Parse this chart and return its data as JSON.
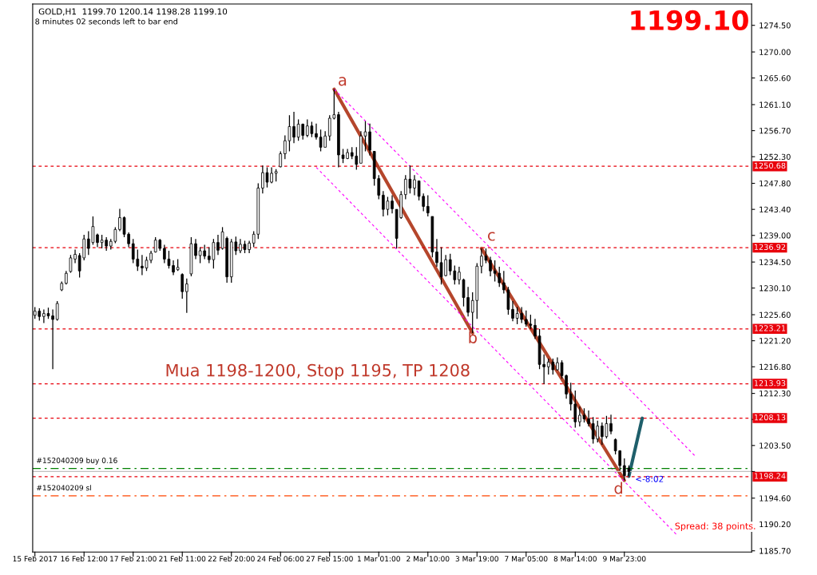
{
  "chart_data": {
    "type": "candlestick",
    "title": "GOLD,H1  1199.70 1200.14 1198.28 1199.10",
    "color": "#000000",
    "categories": [
      "15 Feb 2017",
      null,
      null,
      null,
      null,
      null,
      null,
      null,
      null,
      null,
      null,
      "16 Feb 12:00",
      null,
      null,
      null,
      null,
      null,
      null,
      null,
      null,
      null,
      null,
      "17 Feb 21:00",
      null,
      null,
      null,
      null,
      null,
      null,
      null,
      null,
      null,
      null,
      "21 Feb 11:00",
      null,
      null,
      null,
      null,
      null,
      null,
      null,
      null,
      null,
      null,
      "22 Feb 20:00",
      null,
      null,
      null,
      null,
      null,
      null,
      null,
      null,
      null,
      null,
      "24 Feb 06:00",
      null,
      null,
      null,
      null,
      null,
      null,
      null,
      null,
      null,
      null,
      "27 Feb 15:00",
      null,
      null,
      null,
      null,
      null,
      null,
      null,
      null,
      null,
      null,
      "1 Mar 01:00",
      null,
      null,
      null,
      null,
      null,
      null,
      null,
      null,
      null,
      null,
      "2 Mar 10:00",
      null,
      null,
      null,
      null,
      null,
      null,
      null,
      null,
      null,
      null,
      "3 Mar 19:00",
      null,
      null,
      null,
      null,
      null,
      null,
      null,
      null,
      null,
      null,
      "7 Mar 05:00",
      null,
      null,
      null,
      null,
      null,
      null,
      null,
      null,
      null,
      null,
      "8 Mar 14:00",
      null,
      null,
      null,
      null,
      null,
      null,
      null,
      null,
      null,
      null,
      "9 Mar 23:00",
      null,
      null,
      null,
      null,
      null,
      null,
      null,
      null,
      null,
      null,
      null,
      null,
      null,
      null,
      null,
      null,
      null,
      null,
      null,
      null,
      null,
      null,
      null,
      null,
      null,
      null,
      null,
      null
    ],
    "ohlc": [
      [
        1225.5,
        1226.9,
        1224.9,
        1226.2
      ],
      [
        1226.2,
        1226.7,
        1224.6,
        1225.3
      ],
      [
        1225.3,
        1226.5,
        1224.2,
        1225.8
      ],
      [
        1225.8,
        1226.8,
        1224.9,
        1225.4
      ],
      [
        1225.4,
        1226.5,
        1216.4,
        1224.8
      ],
      [
        1224.8,
        1227.9,
        1224.6,
        1227.5
      ],
      [
        1229.8,
        1231.2,
        1229.6,
        1230.9
      ],
      [
        1230.9,
        1233.0,
        1230.7,
        1232.6
      ],
      [
        1232.9,
        1235.7,
        1232.7,
        1235.2
      ],
      [
        1235.0,
        1236.6,
        1234.3,
        1235.8
      ],
      [
        1235.6,
        1236.0,
        1231.9,
        1233.0
      ],
      [
        1235.2,
        1239.1,
        1234.8,
        1238.4
      ],
      [
        1238.4,
        1239.7,
        1235.7,
        1236.8
      ],
      [
        1237.8,
        1242.2,
        1237.4,
        1240.5
      ],
      [
        1239.1,
        1239.3,
        1237.0,
        1237.8
      ],
      [
        1237.8,
        1239.1,
        1236.8,
        1238.2
      ],
      [
        1238.2,
        1238.7,
        1236.4,
        1237.2
      ],
      [
        1237.2,
        1238.4,
        1236.6,
        1238.0
      ],
      [
        1238.0,
        1240.4,
        1237.7,
        1240.0
      ],
      [
        1240.0,
        1243.5,
        1239.7,
        1242.0
      ],
      [
        1242.0,
        1242.2,
        1238.7,
        1239.2
      ],
      [
        1239.2,
        1239.5,
        1237.0,
        1237.6
      ],
      [
        1237.6,
        1238.4,
        1234.3,
        1235.0
      ],
      [
        1235.0,
        1236.6,
        1233.0,
        1233.8
      ],
      [
        1233.8,
        1235.7,
        1232.3,
        1233.5
      ],
      [
        1233.5,
        1235.4,
        1233.0,
        1234.8
      ],
      [
        1234.8,
        1236.4,
        1234.3,
        1236.0
      ],
      [
        1236.2,
        1238.7,
        1236.1,
        1238.2
      ],
      [
        1238.2,
        1238.4,
        1236.4,
        1236.8
      ],
      [
        1236.8,
        1237.4,
        1234.3,
        1235.0
      ],
      [
        1235.0,
        1236.4,
        1233.4,
        1233.9
      ],
      [
        1233.9,
        1234.8,
        1232.3,
        1232.8
      ],
      [
        1233.2,
        1235.0,
        1233.0,
        1233.6
      ],
      [
        1232.4,
        1232.6,
        1228.3,
        1229.5
      ],
      [
        1229.5,
        1231.7,
        1225.9,
        1230.8
      ],
      [
        1232.5,
        1238.7,
        1232.1,
        1237.6
      ],
      [
        1237.6,
        1238.4,
        1235.0,
        1235.6
      ],
      [
        1235.6,
        1237.0,
        1234.3,
        1236.4
      ],
      [
        1236.4,
        1237.4,
        1235.0,
        1235.5
      ],
      [
        1235.5,
        1237.0,
        1234.3,
        1234.9
      ],
      [
        1234.9,
        1238.4,
        1233.4,
        1237.8
      ],
      [
        1237.8,
        1239.1,
        1235.7,
        1236.5
      ],
      [
        1236.8,
        1240.4,
        1236.6,
        1239.6
      ],
      [
        1238.5,
        1238.8,
        1231.0,
        1232.0
      ],
      [
        1232.0,
        1238.4,
        1231.0,
        1237.9
      ],
      [
        1237.9,
        1238.8,
        1235.7,
        1236.4
      ],
      [
        1236.4,
        1238.4,
        1236.0,
        1237.5
      ],
      [
        1237.5,
        1238.1,
        1236.0,
        1236.6
      ],
      [
        1236.6,
        1238.1,
        1236.0,
        1237.7
      ],
      [
        1237.7,
        1239.7,
        1237.0,
        1239.2
      ],
      [
        1239.2,
        1247.8,
        1238.4,
        1247.0
      ],
      [
        1247.0,
        1250.8,
        1246.1,
        1249.6
      ],
      [
        1249.6,
        1250.5,
        1247.1,
        1248.0
      ],
      [
        1248.0,
        1250.5,
        1247.8,
        1249.5
      ],
      [
        1249.5,
        1250.2,
        1248.1,
        1249.8
      ],
      [
        1250.6,
        1253.2,
        1250.5,
        1252.8
      ],
      [
        1252.8,
        1255.9,
        1251.9,
        1255.0
      ],
      [
        1255.0,
        1259.3,
        1253.2,
        1257.4
      ],
      [
        1257.4,
        1259.9,
        1254.6,
        1255.6
      ],
      [
        1255.6,
        1258.6,
        1255.0,
        1257.8
      ],
      [
        1257.8,
        1257.9,
        1255.2,
        1255.9
      ],
      [
        1255.9,
        1258.6,
        1255.6,
        1257.5
      ],
      [
        1257.5,
        1258.2,
        1255.6,
        1256.2
      ],
      [
        1256.2,
        1257.9,
        1255.2,
        1255.6
      ],
      [
        1255.6,
        1256.9,
        1253.2,
        1253.9
      ],
      [
        1253.9,
        1256.6,
        1253.9,
        1255.8
      ],
      [
        1255.8,
        1259.3,
        1255.0,
        1258.8
      ],
      [
        1258.8,
        1263.7,
        1258.6,
        1259.4
      ],
      [
        1259.4,
        1259.9,
        1250.5,
        1252.6
      ],
      [
        1252.6,
        1253.6,
        1251.2,
        1252.0
      ],
      [
        1252.0,
        1253.6,
        1251.9,
        1253.0
      ],
      [
        1253.0,
        1253.9,
        1251.9,
        1252.4
      ],
      [
        1252.4,
        1253.9,
        1250.1,
        1251.0
      ],
      [
        1251.2,
        1256.6,
        1251.2,
        1255.8
      ],
      [
        1255.8,
        1258.3,
        1253.2,
        1256.5
      ],
      [
        1256.5,
        1257.9,
        1252.5,
        1253.4
      ],
      [
        1253.2,
        1253.2,
        1247.4,
        1248.6
      ],
      [
        1248.6,
        1249.2,
        1245.1,
        1245.8
      ],
      [
        1245.8,
        1246.5,
        1242.2,
        1243.4
      ],
      [
        1243.4,
        1245.5,
        1242.4,
        1244.8
      ],
      [
        1244.8,
        1245.8,
        1242.7,
        1243.5
      ],
      [
        1243.4,
        1243.4,
        1236.8,
        1238.5
      ],
      [
        1242.0,
        1246.5,
        1241.8,
        1245.9
      ],
      [
        1245.9,
        1249.2,
        1245.1,
        1248.5
      ],
      [
        1248.5,
        1250.8,
        1246.1,
        1247.0
      ],
      [
        1247.0,
        1249.2,
        1245.8,
        1248.4
      ],
      [
        1248.2,
        1248.2,
        1244.9,
        1245.6
      ],
      [
        1245.6,
        1246.1,
        1243.1,
        1243.9
      ],
      [
        1243.9,
        1245.8,
        1242.2,
        1242.8
      ],
      [
        1242.2,
        1242.2,
        1235.3,
        1236.2
      ],
      [
        1236.2,
        1238.4,
        1233.7,
        1234.4
      ],
      [
        1234.4,
        1237.0,
        1230.7,
        1232.0
      ],
      [
        1232.2,
        1235.7,
        1232.1,
        1234.9
      ],
      [
        1234.9,
        1235.9,
        1232.3,
        1233.0
      ],
      [
        1233.0,
        1233.9,
        1230.7,
        1231.5
      ],
      [
        1231.5,
        1233.7,
        1230.7,
        1232.8
      ],
      [
        1231.5,
        1231.7,
        1227.0,
        1228.5
      ],
      [
        1228.5,
        1230.3,
        1225.3,
        1226.0
      ],
      [
        1226.0,
        1229.4,
        1222.5,
        1228.0
      ],
      [
        1228.0,
        1234.3,
        1224.9,
        1233.8
      ],
      [
        1233.8,
        1236.8,
        1232.6,
        1235.5
      ],
      [
        1235.5,
        1236.8,
        1234.3,
        1234.8
      ],
      [
        1234.8,
        1235.4,
        1232.1,
        1233.0
      ],
      [
        1233.0,
        1234.8,
        1231.2,
        1232.6
      ],
      [
        1232.6,
        1233.7,
        1230.3,
        1231.0
      ],
      [
        1231.0,
        1233.0,
        1229.2,
        1229.8
      ],
      [
        1229.8,
        1230.3,
        1225.6,
        1226.5
      ],
      [
        1226.5,
        1227.9,
        1224.5,
        1225.0
      ],
      [
        1225.0,
        1226.9,
        1224.0,
        1225.8
      ],
      [
        1225.8,
        1226.9,
        1224.2,
        1224.8
      ],
      [
        1224.8,
        1226.3,
        1223.6,
        1224.0
      ],
      [
        1224.0,
        1225.6,
        1223.2,
        1223.8
      ],
      [
        1223.8,
        1224.9,
        1221.5,
        1222.0
      ],
      [
        1222.0,
        1223.2,
        1216.4,
        1217.2
      ],
      [
        1217.2,
        1218.9,
        1213.9,
        1216.8
      ],
      [
        1216.8,
        1218.2,
        1215.5,
        1217.6
      ],
      [
        1217.6,
        1218.2,
        1215.5,
        1216.3
      ],
      [
        1216.3,
        1218.4,
        1216.2,
        1217.5
      ],
      [
        1217.5,
        1217.9,
        1214.8,
        1215.3
      ],
      [
        1215.3,
        1215.5,
        1211.4,
        1212.2
      ],
      [
        1212.2,
        1214.1,
        1209.4,
        1210.5
      ],
      [
        1210.5,
        1212.8,
        1206.5,
        1207.5
      ],
      [
        1207.5,
        1210.1,
        1206.7,
        1208.6
      ],
      [
        1208.6,
        1209.8,
        1207.4,
        1208.0
      ],
      [
        1208.0,
        1209.4,
        1206.7,
        1207.2
      ],
      [
        1207.2,
        1208.3,
        1203.8,
        1204.6
      ],
      [
        1204.6,
        1207.7,
        1204.0,
        1206.8
      ],
      [
        1206.8,
        1207.4,
        1203.6,
        1205.0
      ],
      [
        1205.0,
        1208.5,
        1204.7,
        1207.2
      ],
      [
        1207.2,
        1208.7,
        1205.4,
        1205.9
      ],
      [
        1204.5,
        1204.7,
        1202.0,
        1202.6
      ],
      [
        1202.6,
        1202.7,
        1199.3,
        1200.1
      ],
      [
        1200.1,
        1201.3,
        1197.6,
        1198.4
      ],
      [
        1199.7,
        1200.14,
        1198.28,
        1199.1
      ],
      null,
      null,
      null,
      null,
      null,
      null,
      null,
      null,
      null,
      null,
      null,
      null,
      null,
      null,
      null,
      null,
      null,
      null,
      null,
      null,
      null,
      null,
      null,
      null,
      null,
      null,
      null
    ],
    "series": [
      {
        "type": "line",
        "color": "#b5462c",
        "line_style": "solid",
        "values": [
          null,
          null,
          null,
          null,
          null,
          null,
          null,
          null,
          null,
          null,
          null,
          null,
          null,
          null,
          null,
          null,
          null,
          null,
          null,
          null,
          null,
          null,
          null,
          null,
          null,
          null,
          null,
          null,
          null,
          null,
          null,
          null,
          null,
          null,
          null,
          null,
          null,
          null,
          null,
          null,
          null,
          null,
          null,
          null,
          null,
          null,
          null,
          null,
          null,
          null,
          null,
          null,
          null,
          null,
          null,
          null,
          null,
          null,
          null,
          null,
          null,
          null,
          null,
          null,
          null,
          null,
          null,
          1263.7,
          null,
          null,
          null,
          null,
          null,
          null,
          null,
          null,
          null,
          null,
          null,
          null,
          null,
          null,
          null,
          null,
          null,
          null,
          null,
          null,
          null,
          null,
          null,
          null,
          null,
          null,
          null,
          null,
          null,
          null,
          1222.5,
          null,
          null,
          null,
          null,
          null,
          null,
          null,
          null,
          null,
          null,
          null,
          null,
          null,
          null,
          null,
          null,
          null,
          null,
          null,
          null,
          null,
          null,
          null,
          null,
          null,
          null,
          null,
          null,
          null,
          null,
          null,
          null,
          null,
          null,
          null,
          null,
          null,
          null,
          null,
          null,
          null,
          null,
          null,
          null,
          null,
          null,
          null,
          null,
          null,
          null,
          null,
          null,
          null,
          null,
          null,
          null,
          null,
          null,
          null,
          null,
          null,
          null
        ]
      },
      {
        "type": "line",
        "color": "#b5462c",
        "line_style": "solid",
        "values": [
          null,
          null,
          null,
          null,
          null,
          null,
          null,
          null,
          null,
          null,
          null,
          null,
          null,
          null,
          null,
          null,
          null,
          null,
          null,
          null,
          null,
          null,
          null,
          null,
          null,
          null,
          null,
          null,
          null,
          null,
          null,
          null,
          null,
          null,
          null,
          null,
          null,
          null,
          null,
          null,
          null,
          null,
          null,
          null,
          null,
          null,
          null,
          null,
          null,
          null,
          null,
          null,
          null,
          null,
          null,
          null,
          null,
          null,
          null,
          null,
          null,
          null,
          null,
          null,
          null,
          null,
          null,
          null,
          null,
          null,
          null,
          null,
          null,
          null,
          null,
          null,
          null,
          null,
          null,
          null,
          null,
          null,
          null,
          null,
          null,
          null,
          null,
          null,
          null,
          null,
          null,
          null,
          null,
          null,
          null,
          null,
          null,
          null,
          null,
          null,
          1236.8,
          null,
          null,
          null,
          null,
          null,
          null,
          null,
          null,
          null,
          null,
          null,
          null,
          null,
          null,
          null,
          null,
          null,
          null,
          null,
          null,
          null,
          null,
          null,
          null,
          null,
          null,
          null,
          null,
          null,
          null,
          null,
          1197.6,
          null,
          null,
          null,
          null,
          null,
          null,
          null,
          null,
          null,
          null,
          null,
          null,
          null,
          null,
          null,
          null,
          null,
          null,
          null,
          null,
          null,
          null,
          null,
          null,
          null,
          null,
          null,
          null
        ]
      },
      {
        "type": "line",
        "color": "#ff00ff",
        "line_style": "dashed",
        "values": [
          null,
          null,
          null,
          null,
          null,
          null,
          null,
          null,
          null,
          null,
          null,
          null,
          null,
          null,
          null,
          null,
          null,
          null,
          null,
          null,
          null,
          null,
          null,
          null,
          null,
          null,
          null,
          null,
          null,
          null,
          null,
          null,
          null,
          null,
          null,
          null,
          null,
          null,
          null,
          null,
          null,
          null,
          null,
          null,
          null,
          null,
          null,
          null,
          null,
          null,
          null,
          null,
          null,
          null,
          null,
          null,
          null,
          null,
          null,
          null,
          null,
          null,
          null,
          null,
          null,
          null,
          null,
          1263.7,
          null,
          null,
          null,
          null,
          null,
          null,
          null,
          null,
          null,
          null,
          null,
          null,
          null,
          null,
          null,
          null,
          null,
          null,
          null,
          null,
          null,
          null,
          null,
          null,
          null,
          null,
          null,
          null,
          null,
          null,
          null,
          null,
          null,
          null,
          null,
          null,
          null,
          null,
          null,
          null,
          null,
          null,
          null,
          null,
          null,
          null,
          null,
          null,
          null,
          null,
          null,
          null,
          null,
          null,
          null,
          null,
          null,
          null,
          null,
          null,
          null,
          null,
          null,
          null,
          null,
          null,
          null,
          null,
          null,
          null,
          null,
          null,
          null,
          null,
          null,
          null,
          null,
          null,
          null,
          null,
          1201.6,
          null,
          null,
          null,
          null,
          null,
          null,
          null,
          null,
          null,
          null,
          null,
          null
        ]
      },
      {
        "type": "line",
        "color": "#ff00ff",
        "line_style": "dashed",
        "values": [
          null,
          null,
          null,
          null,
          null,
          null,
          null,
          null,
          null,
          null,
          null,
          null,
          null,
          null,
          null,
          null,
          null,
          null,
          null,
          null,
          null,
          null,
          null,
          null,
          null,
          null,
          null,
          null,
          null,
          null,
          null,
          null,
          null,
          null,
          null,
          null,
          null,
          null,
          null,
          null,
          null,
          null,
          null,
          null,
          null,
          null,
          null,
          null,
          null,
          null,
          null,
          null,
          null,
          null,
          null,
          null,
          null,
          null,
          null,
          null,
          null,
          null,
          null,
          1250.5,
          null,
          null,
          null,
          null,
          null,
          null,
          null,
          null,
          null,
          null,
          null,
          null,
          null,
          null,
          null,
          null,
          null,
          null,
          null,
          null,
          null,
          null,
          null,
          null,
          null,
          null,
          null,
          null,
          null,
          null,
          null,
          null,
          null,
          null,
          null,
          null,
          null,
          null,
          null,
          null,
          null,
          null,
          null,
          null,
          null,
          null,
          null,
          null,
          null,
          null,
          null,
          null,
          null,
          null,
          null,
          null,
          null,
          null,
          null,
          null,
          null,
          null,
          null,
          null,
          null,
          null,
          null,
          null,
          null,
          null,
          null,
          null,
          null,
          null,
          null,
          null,
          null,
          null,
          null,
          null,
          1188.2,
          null,
          null,
          null,
          null,
          null,
          null,
          null,
          null,
          null,
          null,
          null,
          null,
          null,
          null,
          null,
          null
        ]
      },
      {
        "type": "line",
        "color": "#1f5f6b",
        "line_style": "solid",
        "values": [
          null,
          null,
          null,
          null,
          null,
          null,
          null,
          null,
          null,
          null,
          null,
          null,
          null,
          null,
          null,
          null,
          null,
          null,
          null,
          null,
          null,
          null,
          null,
          null,
          null,
          null,
          null,
          null,
          null,
          null,
          null,
          null,
          null,
          null,
          null,
          null,
          null,
          null,
          null,
          null,
          null,
          null,
          null,
          null,
          null,
          null,
          null,
          null,
          null,
          null,
          null,
          null,
          null,
          null,
          null,
          null,
          null,
          null,
          null,
          null,
          null,
          null,
          null,
          null,
          null,
          null,
          null,
          null,
          null,
          null,
          null,
          null,
          null,
          null,
          null,
          null,
          null,
          null,
          null,
          null,
          null,
          null,
          null,
          null,
          null,
          null,
          null,
          null,
          null,
          null,
          null,
          null,
          null,
          null,
          null,
          null,
          null,
          null,
          null,
          null,
          null,
          null,
          null,
          null,
          null,
          null,
          null,
          null,
          null,
          null,
          null,
          null,
          null,
          null,
          null,
          null,
          null,
          null,
          null,
          null,
          null,
          null,
          null,
          null,
          null,
          null,
          null,
          null,
          null,
          null,
          null,
          null,
          null,
          1198.3,
          null,
          null,
          1208.1,
          null,
          null,
          null,
          null,
          null,
          null,
          null,
          null,
          null,
          null,
          null,
          null,
          null,
          null,
          null,
          null,
          null,
          null,
          null,
          null,
          null,
          null,
          null,
          null
        ]
      }
    ],
    "ylim": [
      1185.5,
      1278.1
    ],
    "yticks": [
      {
        "value": 1185.7,
        "label": "1185.70"
      },
      {
        "value": 1190.2,
        "label": "1190.20"
      },
      {
        "value": 1194.6,
        "label": "1194.60"
      },
      {
        "value": 1199.1,
        "label": null
      },
      {
        "value": 1203.5,
        "label": "1203.50"
      },
      {
        "value": 1207.9,
        "label": null
      },
      {
        "value": 1212.3,
        "label": "1212.30"
      },
      {
        "value": 1216.8,
        "label": "1216.80"
      },
      {
        "value": 1221.2,
        "label": "1221.20"
      },
      {
        "value": 1225.6,
        "label": "1225.60"
      },
      {
        "value": 1230.1,
        "label": "1230.10"
      },
      {
        "value": 1234.5,
        "label": "1234.50"
      },
      {
        "value": 1239.0,
        "label": "1239.00"
      },
      {
        "value": 1243.4,
        "label": "1243.40"
      },
      {
        "value": 1247.8,
        "label": "1247.80"
      },
      {
        "value": 1252.3,
        "label": "1252.30"
      },
      {
        "value": 1256.7,
        "label": "1256.70"
      },
      {
        "value": 1261.1,
        "label": "1261.10"
      },
      {
        "value": 1265.6,
        "label": "1265.60"
      },
      {
        "value": 1270.0,
        "label": "1270.00"
      },
      {
        "value": 1274.5,
        "label": "1274.50"
      }
    ],
    "ref_lines": [
      {
        "axis": "y",
        "value": 1250.68,
        "label": "1250.68",
        "color": "#e8000b",
        "line_style": "dashed"
      },
      {
        "axis": "y",
        "value": 1236.92,
        "label": "1236.92",
        "color": "#e8000b",
        "line_style": "dashed"
      },
      {
        "axis": "y",
        "value": 1223.21,
        "label": "1223.21",
        "color": "#e8000b",
        "line_style": "dashed"
      },
      {
        "axis": "y",
        "value": 1213.93,
        "label": "1213.93",
        "color": "#e8000b",
        "line_style": "dashed"
      },
      {
        "axis": "y",
        "value": 1208.13,
        "label": "1208.13",
        "color": "#e8000b",
        "line_style": "dashed"
      },
      {
        "axis": "y",
        "value": 1199.6,
        "color": "#008000",
        "line_style": "dashdot"
      },
      {
        "axis": "y",
        "value": 1199.1,
        "color": "#c0c0c0",
        "line_style": "solid"
      },
      {
        "axis": "y",
        "value": 1198.24,
        "label": "1198.24",
        "color": "#e8000b",
        "line_style": "dashed"
      },
      {
        "axis": "y",
        "value": 1195.0,
        "color": "#ff4500",
        "line_style": "dashdot"
      }
    ],
    "annotations": [
      "8 minutes 02 seconds left to bar end",
      "1199.10",
      "Mua 1198-1200, Stop 1195, TP 1208",
      "Spread: 38 points.",
      "#152040209 buy 0.16",
      "#152040209 sl",
      "<-8:02",
      "a",
      "b",
      "c",
      "d"
    ],
    "grid": false,
    "legend": false
  }
}
